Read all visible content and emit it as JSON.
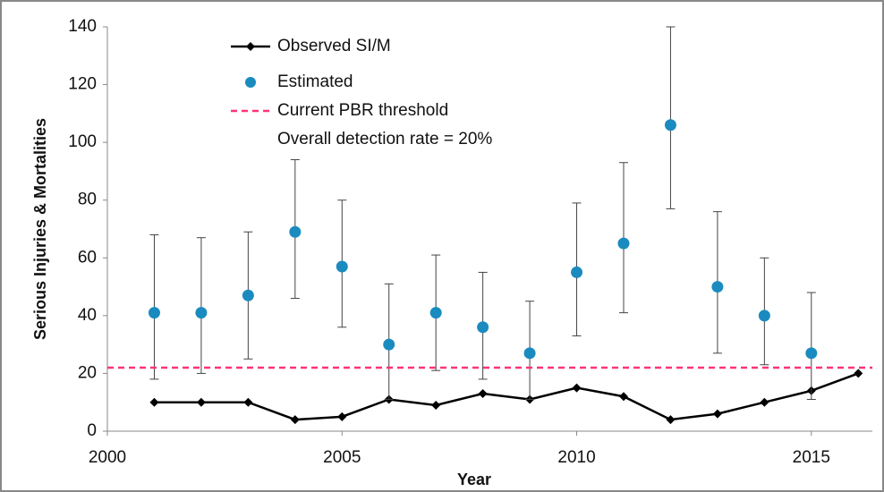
{
  "chart_data": {
    "type": "line",
    "x": [
      2001,
      2002,
      2003,
      2004,
      2005,
      2006,
      2007,
      2008,
      2009,
      2010,
      2011,
      2012,
      2013,
      2014,
      2015,
      2016
    ],
    "series": [
      {
        "name": "Observed SI/M",
        "color": "#000000",
        "values": [
          10,
          10,
          10,
          4,
          5,
          11,
          9,
          13,
          11,
          15,
          12,
          4,
          6,
          10,
          14,
          20
        ]
      },
      {
        "name": "Estimated",
        "color": "#1a8bbf",
        "values": [
          41,
          41,
          47,
          69,
          57,
          30,
          41,
          36,
          27,
          55,
          65,
          106,
          50,
          40,
          27,
          null
        ],
        "lower": [
          18,
          20,
          25,
          46,
          36,
          11,
          21,
          18,
          11,
          33,
          41,
          77,
          27,
          23,
          11,
          null
        ],
        "upper": [
          68,
          67,
          69,
          94,
          80,
          51,
          61,
          55,
          45,
          79,
          93,
          140,
          76,
          60,
          48,
          null
        ]
      },
      {
        "name": "Current PBR threshold",
        "color": "#ff3377",
        "value": 22
      }
    ],
    "annotation": "Overall detection rate = 20%",
    "xlabel": "Year",
    "ylabel": "Serious Injuries & Mortalities",
    "xlim": [
      2000,
      2016.3
    ],
    "xticks": [
      2000,
      2005,
      2010,
      2015
    ],
    "ylim": [
      0,
      140
    ],
    "yticks": [
      0,
      20,
      40,
      60,
      80,
      100,
      120,
      140
    ]
  }
}
